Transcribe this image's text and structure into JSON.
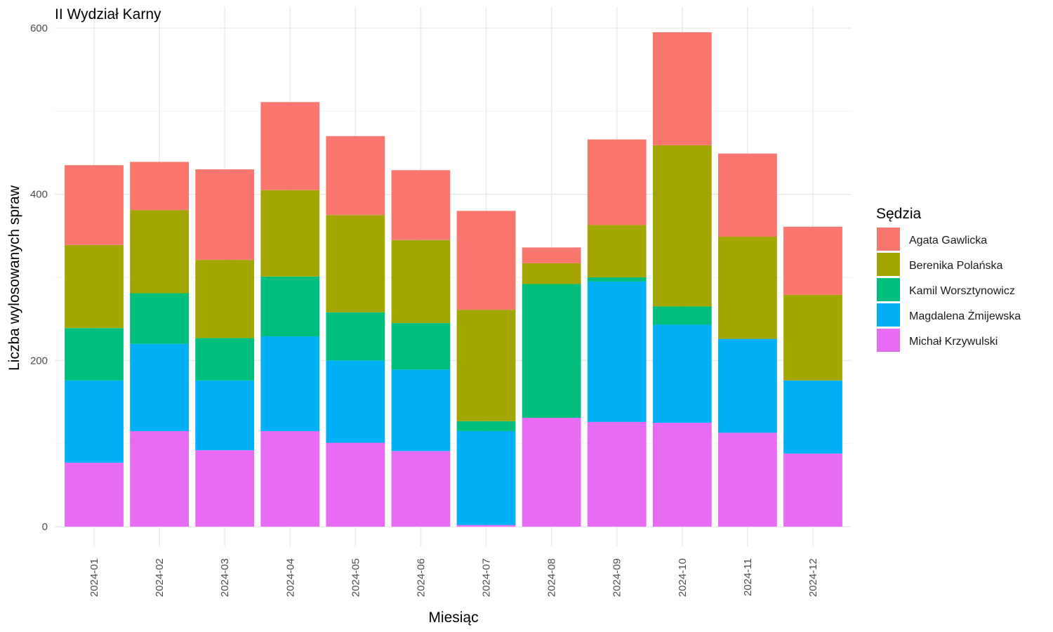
{
  "chart_data": {
    "type": "bar",
    "stacked": true,
    "title": "II Wydział Karny",
    "xlabel": "Miesiąc",
    "ylabel": "Liczba wylosowanych spraw",
    "ylim": [
      0,
      600
    ],
    "yticks": [
      0,
      200,
      400,
      600
    ],
    "grid": true,
    "legend": {
      "title": "Sędzia",
      "position": "right"
    },
    "categories": [
      "2024-01",
      "2024-02",
      "2024-03",
      "2024-04",
      "2024-05",
      "2024-06",
      "2024-07",
      "2024-08",
      "2024-09",
      "2024-10",
      "2024-11",
      "2024-12"
    ],
    "stack_order": [
      "Michał Krzywulski",
      "Magdalena Żmijewska",
      "Kamil Worsztynowicz",
      "Berenika Polańska",
      "Agata Gawlicka"
    ],
    "series": [
      {
        "name": "Agata Gawlicka",
        "color": "#F8766D",
        "values": [
          96,
          58,
          109,
          106,
          95,
          84,
          119,
          19,
          103,
          136,
          100,
          82
        ]
      },
      {
        "name": "Berenika Polańska",
        "color": "#A3A500",
        "values": [
          100,
          100,
          94,
          104,
          117,
          100,
          134,
          25,
          63,
          194,
          123,
          103
        ]
      },
      {
        "name": "Kamil Worsztynowicz",
        "color": "#00BF7D",
        "values": [
          63,
          61,
          51,
          72,
          58,
          56,
          12,
          161,
          5,
          22,
          0,
          0
        ]
      },
      {
        "name": "Magdalena Żmijewska",
        "color": "#00B0F6",
        "values": [
          99,
          105,
          84,
          114,
          99,
          98,
          113,
          0,
          169,
          118,
          113,
          88
        ]
      },
      {
        "name": "Michał Krzywulski",
        "color": "#E76BF3",
        "values": [
          77,
          115,
          92,
          115,
          101,
          91,
          2,
          131,
          126,
          125,
          113,
          88
        ]
      }
    ]
  }
}
